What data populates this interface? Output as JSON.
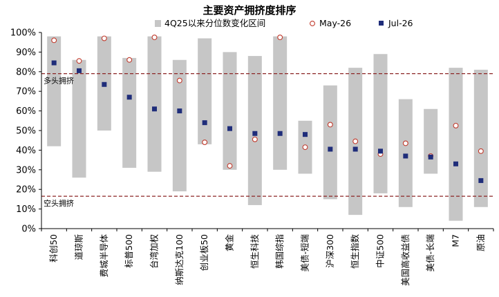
{
  "chart_data": {
    "type": "range-dot",
    "title": "主要资产拥挤度排序",
    "ylim": [
      0,
      100
    ],
    "yticks": [
      0,
      10,
      20,
      30,
      40,
      50,
      60,
      70,
      80,
      90,
      100
    ],
    "ytick_labels": [
      "0%",
      "10%",
      "20%",
      "30%",
      "40%",
      "50%",
      "60%",
      "70%",
      "80%",
      "90%",
      "100%"
    ],
    "grid": false,
    "legend_position": "top",
    "categories": [
      "科创50",
      "道琼斯",
      "费城半导体",
      "标普500",
      "台湾加权",
      "纳斯达克100",
      "创业板50",
      "黄金",
      "恒生科技",
      "韩国综指",
      "美债-短端",
      "沪深300",
      "恒生指数",
      "中证500",
      "美国高收益债",
      "美债-长端",
      "M7",
      "原油"
    ],
    "series": [
      {
        "name": "4Q25以来分位数变化区间",
        "kind": "range",
        "color": "#c6c6c6",
        "low": [
          42,
          26,
          50,
          31,
          29,
          19,
          43,
          30,
          12,
          30,
          28,
          15,
          7,
          18,
          11,
          28,
          4,
          11
        ],
        "high": [
          98,
          86,
          98,
          87,
          98,
          86,
          97,
          90,
          88,
          98,
          55,
          73,
          82,
          89,
          66,
          61,
          82,
          81
        ]
      },
      {
        "name": "May-26",
        "kind": "circle",
        "color": "#c0392b",
        "values": [
          96,
          85.5,
          97,
          86,
          97.5,
          75.5,
          44,
          32,
          45.5,
          97.5,
          41.5,
          53,
          44.5,
          38,
          43.5,
          37,
          52.5,
          39.5
        ]
      },
      {
        "name": "Jul-26",
        "kind": "square",
        "color": "#1f2d7a",
        "values": [
          84.5,
          80.5,
          73.5,
          67,
          61,
          60,
          54,
          51,
          48.5,
          48.5,
          48,
          40.5,
          40.5,
          39.5,
          37,
          36.5,
          33,
          24.5
        ]
      }
    ],
    "reference_lines": [
      {
        "label": "多头拥挤",
        "value": 79,
        "color": "#8b2323"
      },
      {
        "label": "空头拥挤",
        "value": 16.5,
        "color": "#8b2323"
      }
    ]
  }
}
